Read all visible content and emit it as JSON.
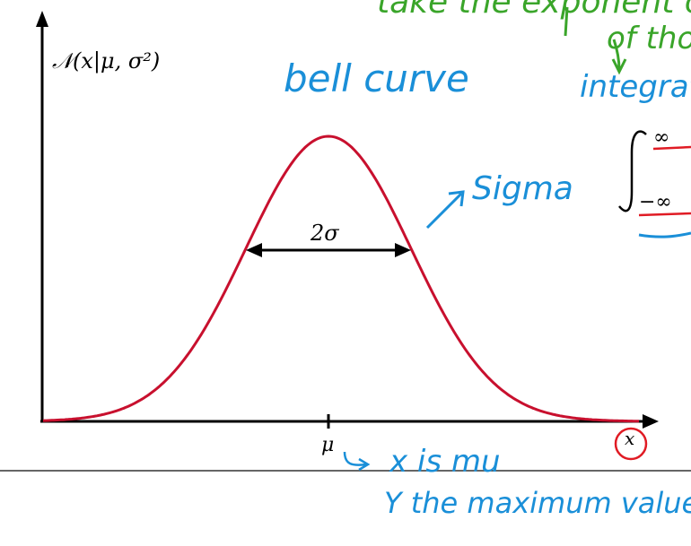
{
  "diagram": {
    "y_axis_label": "𝒩(x|μ, σ²)",
    "x_axis_label": "x",
    "mu_label": "μ",
    "width_label": "2σ",
    "curve_color": "#c8102e",
    "axis_color": "#000000"
  },
  "annotations": {
    "top_green_line1": "take the exponent of",
    "top_green_line2": "of tho",
    "integral_label": "integrat",
    "integral_upper": "∞",
    "integral_lower": "−∞",
    "bell_curve": "bell curve",
    "sigma_note": "Sigma",
    "x_is_mu": "x is mu",
    "y_max": "Y the maximum value",
    "blue_color": "#1a8fd8",
    "green_color": "#3aa52a",
    "red_color": "#e01b24"
  }
}
